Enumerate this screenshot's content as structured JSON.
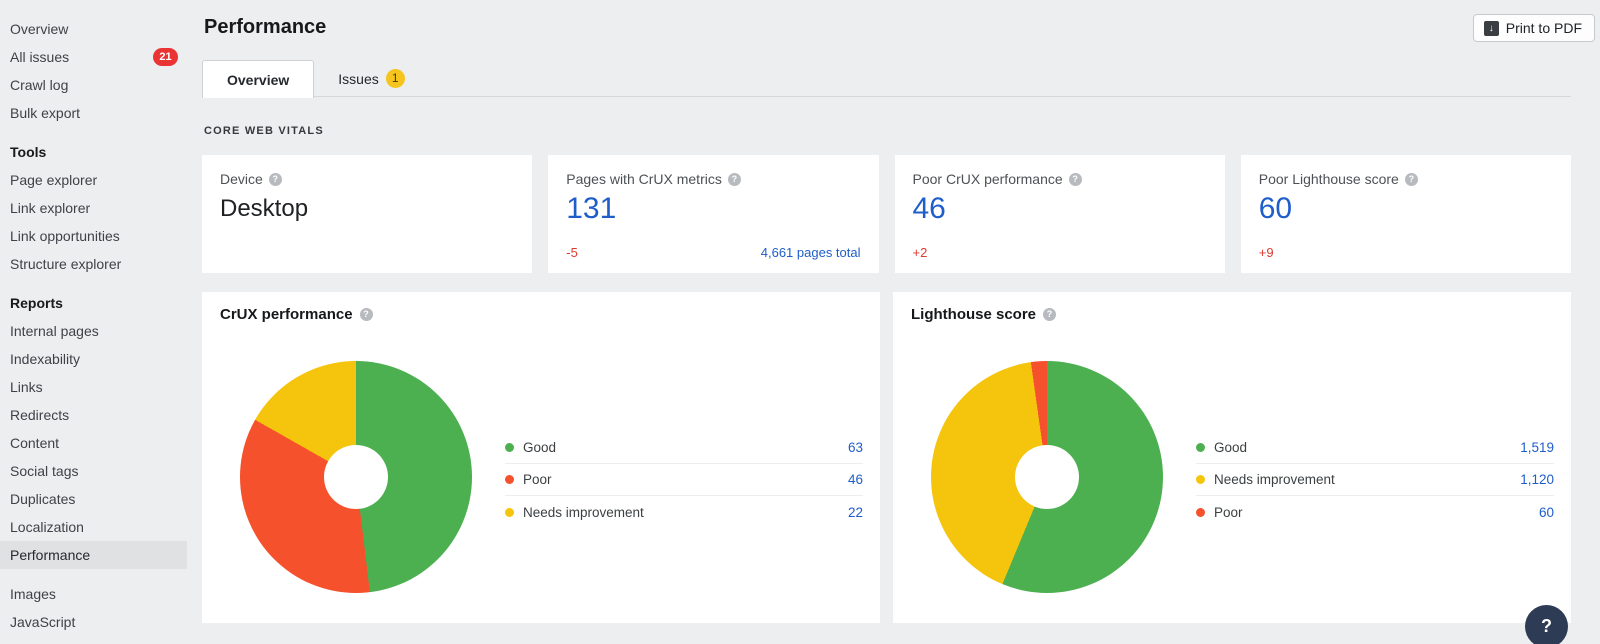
{
  "app": {
    "background_color": "#edeef0",
    "accent_blue": "#1f5eca",
    "delta_red": "#de3a2f",
    "panel_color": "#ffffff"
  },
  "sidebar": {
    "badge_color": "#ea3434",
    "sections": [
      {
        "header": null,
        "items": [
          {
            "label": "Overview"
          },
          {
            "label": "All issues",
            "badge": "21"
          },
          {
            "label": "Crawl log"
          },
          {
            "label": "Bulk export"
          }
        ]
      },
      {
        "header": "Tools",
        "items": [
          {
            "label": "Page explorer"
          },
          {
            "label": "Link explorer"
          },
          {
            "label": "Link opportunities"
          },
          {
            "label": "Structure explorer"
          }
        ]
      },
      {
        "header": "Reports",
        "items": [
          {
            "label": "Internal pages"
          },
          {
            "label": "Indexability"
          },
          {
            "label": "Links"
          },
          {
            "label": "Redirects"
          },
          {
            "label": "Content"
          },
          {
            "label": "Social tags"
          },
          {
            "label": "Duplicates"
          },
          {
            "label": "Localization"
          },
          {
            "label": "Performance",
            "active": true
          }
        ]
      },
      {
        "header": null,
        "items": [
          {
            "label": "Images"
          },
          {
            "label": "JavaScript"
          }
        ]
      }
    ]
  },
  "header": {
    "title": "Performance",
    "print_button_label": "Print to PDF",
    "print_icon": "download-document-icon"
  },
  "tabs": [
    {
      "label": "Overview",
      "active": true
    },
    {
      "label": "Issues",
      "badge": "1",
      "badge_color": "#f5c51d",
      "active": false
    }
  ],
  "section_label": "CORE WEB VITALS",
  "cards": [
    {
      "label": "Device",
      "value": "Desktop",
      "value_type": "text",
      "help_icon": "help-icon"
    },
    {
      "label": "Pages with CrUX metrics",
      "value": "131",
      "value_type": "number",
      "delta": "-5",
      "link": "4,661 pages total",
      "help_icon": "help-icon"
    },
    {
      "label": "Poor CrUX performance",
      "value": "46",
      "value_type": "number",
      "delta": "+2",
      "help_icon": "help-icon"
    },
    {
      "label": "Poor Lighthouse score",
      "value": "60",
      "value_type": "number",
      "delta": "+9",
      "help_icon": "help-icon"
    }
  ],
  "chart_data": [
    {
      "type": "pie",
      "subtype": "donut",
      "title": "CrUX performance",
      "start_angle_deg": 0,
      "direction": "clockwise",
      "total": 131,
      "legend_position": "right",
      "segments": [
        {
          "label": "Good",
          "value": 63,
          "display": "63",
          "color": "#4caf50"
        },
        {
          "label": "Poor",
          "value": 46,
          "display": "46",
          "color": "#f4512c"
        },
        {
          "label": "Needs improvement",
          "value": 22,
          "display": "22",
          "color": "#f5c40c"
        }
      ]
    },
    {
      "type": "pie",
      "subtype": "donut",
      "title": "Lighthouse score",
      "start_angle_deg": 0,
      "direction": "clockwise",
      "total": 2699,
      "legend_position": "right",
      "segments": [
        {
          "label": "Good",
          "value": 1519,
          "display": "1,519",
          "color": "#4caf50"
        },
        {
          "label": "Needs improvement",
          "value": 1120,
          "display": "1,120",
          "color": "#f5c40c"
        },
        {
          "label": "Poor",
          "value": 60,
          "display": "60",
          "color": "#f4512c"
        }
      ]
    }
  ],
  "help_fab_label": "?"
}
